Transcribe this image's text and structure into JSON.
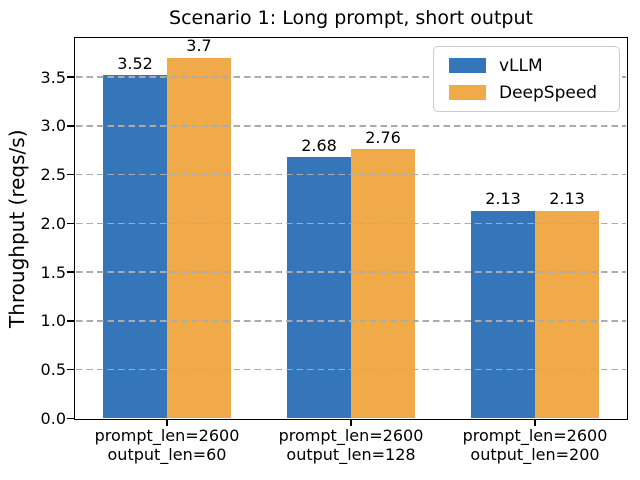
{
  "chart_data": {
    "type": "bar",
    "title": "Scenario 1: Long prompt, short output",
    "xlabel": "",
    "ylabel": "Throughput (reqs/s)",
    "categories": [
      [
        "prompt_len=2600",
        "output_len=60"
      ],
      [
        "prompt_len=2600",
        "output_len=128"
      ],
      [
        "prompt_len=2600",
        "output_len=200"
      ]
    ],
    "series": [
      {
        "name": "vLLM",
        "color": "#3576BB",
        "values": [
          3.52,
          2.68,
          2.13
        ],
        "value_labels": [
          "3.52",
          "2.68",
          "2.13"
        ]
      },
      {
        "name": "DeepSpeed",
        "color": "#F0AA4A",
        "values": [
          3.7,
          2.76,
          2.13
        ],
        "value_labels": [
          "3.7",
          "2.76",
          "2.13"
        ]
      }
    ],
    "ylim": [
      0,
      3.9
    ],
    "yticks": [
      0.0,
      0.5,
      1.0,
      1.5,
      2.0,
      2.5,
      3.0,
      3.5
    ],
    "ytick_labels": [
      "0.0",
      "0.5",
      "1.0",
      "1.5",
      "2.0",
      "2.5",
      "3.0",
      "3.5"
    ],
    "grid": {
      "axis": "y",
      "style": "dashed",
      "color": "#ababab",
      "drawn_above_bars": true
    },
    "legend": {
      "position": "upper right"
    },
    "bar_width_fraction": 0.35
  }
}
